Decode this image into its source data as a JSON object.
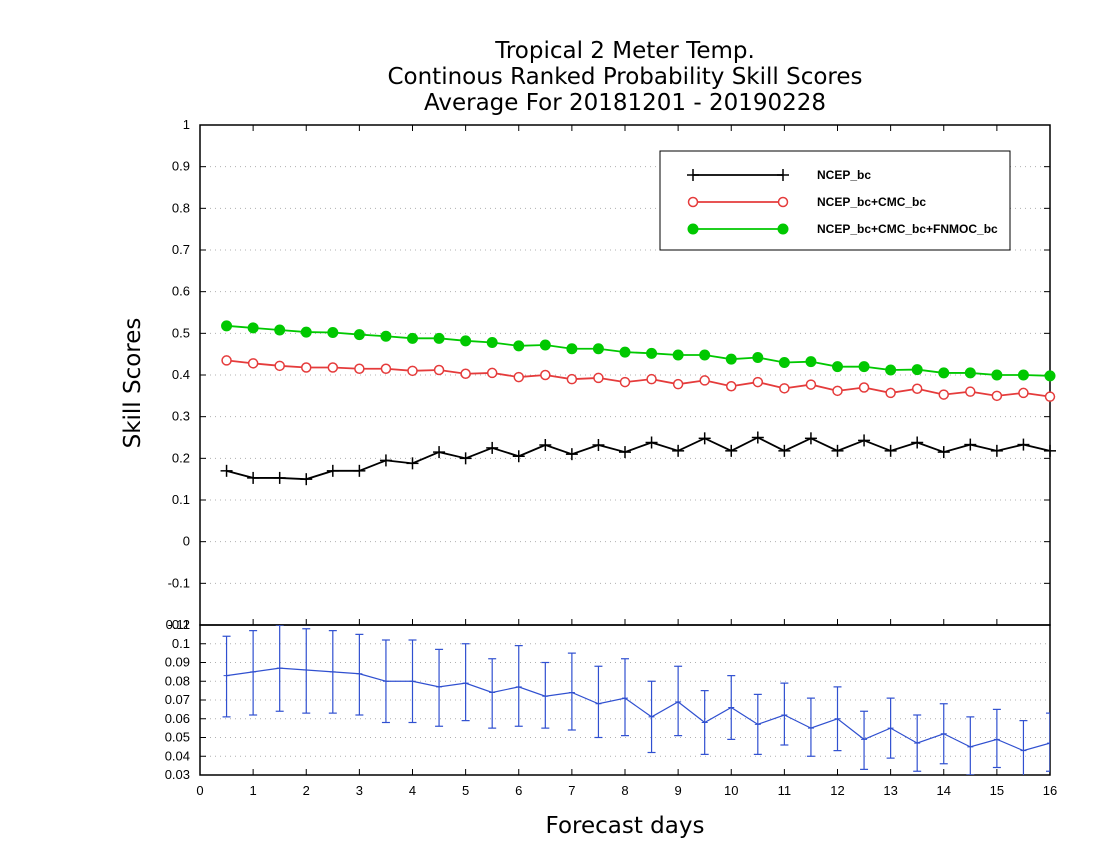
{
  "chart_data": [
    {
      "type": "line",
      "title": [
        "Tropical 2 Meter Temp.",
        "Continous Ranked Probability Skill Scores",
        "Average For 20181201 - 20190228"
      ],
      "xlabel": "Forecast days",
      "ylabel": "Skill Scores",
      "xlim": [
        0,
        16
      ],
      "ylim": [
        -0.2,
        1
      ],
      "x_ticks": [
        "0",
        "1",
        "2",
        "3",
        "4",
        "5",
        "6",
        "7",
        "8",
        "9",
        "10",
        "11",
        "12",
        "13",
        "14",
        "15",
        "16"
      ],
      "y_ticks": [
        "1",
        "0.9",
        "0.8",
        "0.7",
        "0.6",
        "0.5",
        "0.4",
        "0.3",
        "0.2",
        "0.1",
        "0",
        "-0.1",
        "-0.2"
      ],
      "grid": true,
      "legend_position": "top-right",
      "x": [
        0.5,
        1,
        1.5,
        2,
        2.5,
        3,
        3.5,
        4,
        4.5,
        5,
        5.5,
        6,
        6.5,
        7,
        7.5,
        8,
        8.5,
        9,
        9.5,
        10,
        10.5,
        11,
        11.5,
        12,
        12.5,
        13,
        13.5,
        14,
        14.5,
        15,
        15.5,
        16
      ],
      "series": [
        {
          "name": "NCEP_bc",
          "color": "#000000",
          "marker": "plus",
          "values": [
            0.17,
            0.153,
            0.153,
            0.15,
            0.17,
            0.17,
            0.195,
            0.188,
            0.215,
            0.2,
            0.225,
            0.205,
            0.232,
            0.21,
            0.232,
            0.215,
            0.238,
            0.218,
            0.248,
            0.218,
            0.25,
            0.218,
            0.248,
            0.218,
            0.243,
            0.218,
            0.238,
            0.215,
            0.233,
            0.218,
            0.233,
            0.218
          ]
        },
        {
          "name": "NCEP_bc+CMC_bc",
          "color": "#e53b3b",
          "marker": "open-circle",
          "values": [
            0.435,
            0.428,
            0.422,
            0.418,
            0.418,
            0.415,
            0.415,
            0.41,
            0.412,
            0.403,
            0.405,
            0.395,
            0.4,
            0.39,
            0.393,
            0.383,
            0.39,
            0.378,
            0.387,
            0.373,
            0.383,
            0.368,
            0.377,
            0.362,
            0.37,
            0.357,
            0.367,
            0.353,
            0.36,
            0.35,
            0.357,
            0.348
          ]
        },
        {
          "name": "NCEP_bc+CMC_bc+FNMOC_bc",
          "color": "#00c800",
          "marker": "filled-circle",
          "values": [
            0.518,
            0.513,
            0.508,
            0.503,
            0.502,
            0.497,
            0.493,
            0.488,
            0.488,
            0.482,
            0.478,
            0.47,
            0.472,
            0.463,
            0.463,
            0.455,
            0.452,
            0.448,
            0.448,
            0.438,
            0.442,
            0.43,
            0.432,
            0.42,
            0.42,
            0.412,
            0.413,
            0.405,
            0.405,
            0.4,
            0.4,
            0.398
          ]
        }
      ]
    },
    {
      "type": "line",
      "ylim": [
        0.03,
        0.11
      ],
      "y_ticks": [
        "0.11",
        "0.1",
        "0.09",
        "0.08",
        "0.07",
        "0.06",
        "0.05",
        "0.04",
        "0.03"
      ],
      "x": [
        0.5,
        1,
        1.5,
        2,
        2.5,
        3,
        3.5,
        4,
        4.5,
        5,
        5.5,
        6,
        6.5,
        7,
        7.5,
        8,
        8.5,
        9,
        9.5,
        10,
        10.5,
        11,
        11.5,
        12,
        12.5,
        13,
        13.5,
        14,
        14.5,
        15,
        15.5,
        16
      ],
      "series": [
        {
          "color": "#3050d0",
          "values": [
            0.083,
            0.085,
            0.087,
            0.086,
            0.085,
            0.084,
            0.08,
            0.08,
            0.077,
            0.079,
            0.074,
            0.077,
            0.072,
            0.074,
            0.068,
            0.071,
            0.061,
            0.069,
            0.058,
            0.066,
            0.057,
            0.062,
            0.055,
            0.06,
            0.049,
            0.055,
            0.047,
            0.052,
            0.045,
            0.049,
            0.043,
            0.047
          ],
          "error_low": [
            0.061,
            0.062,
            0.064,
            0.063,
            0.063,
            0.062,
            0.058,
            0.058,
            0.056,
            0.059,
            0.055,
            0.056,
            0.055,
            0.054,
            0.05,
            0.051,
            0.042,
            0.051,
            0.041,
            0.049,
            0.041,
            0.046,
            0.04,
            0.043,
            0.033,
            0.039,
            0.032,
            0.036,
            0.03,
            0.034,
            0.028,
            0.032
          ],
          "error_high": [
            0.104,
            0.107,
            0.11,
            0.108,
            0.107,
            0.105,
            0.102,
            0.102,
            0.097,
            0.1,
            0.092,
            0.099,
            0.09,
            0.095,
            0.088,
            0.092,
            0.08,
            0.088,
            0.075,
            0.083,
            0.073,
            0.079,
            0.071,
            0.077,
            0.064,
            0.071,
            0.062,
            0.068,
            0.061,
            0.065,
            0.059,
            0.063
          ]
        }
      ]
    }
  ]
}
